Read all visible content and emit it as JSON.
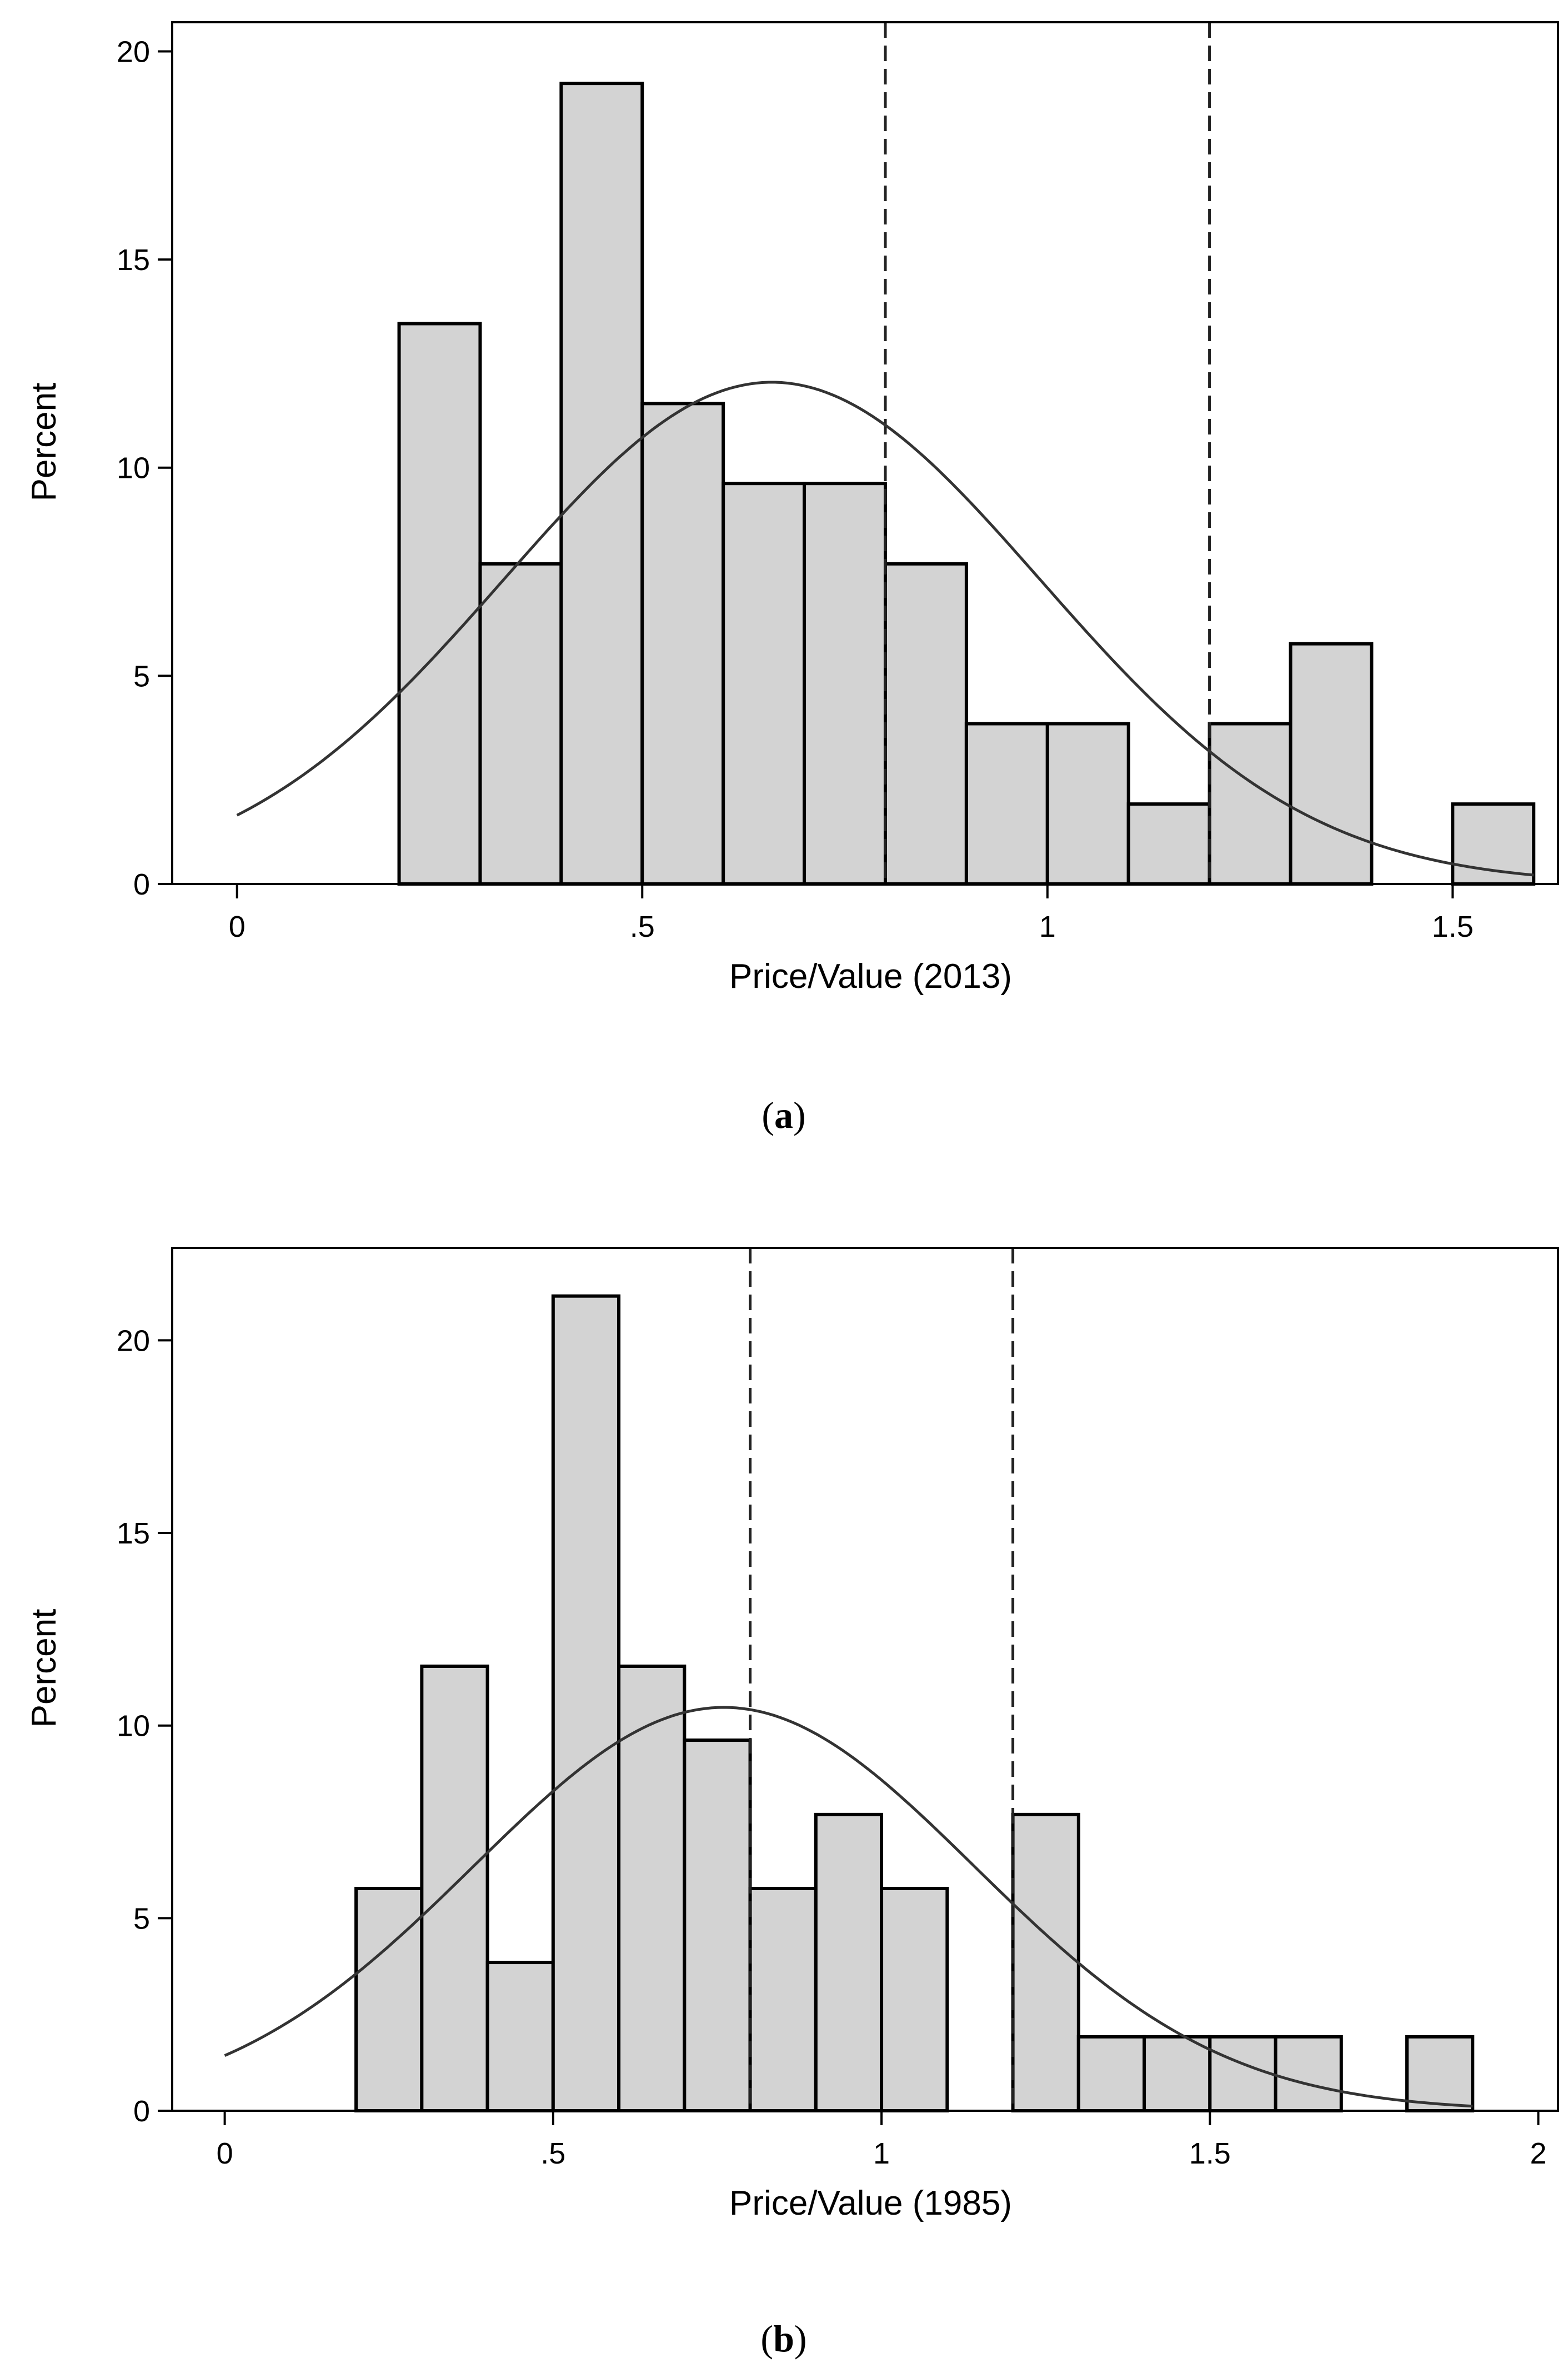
{
  "figure": {
    "panels": [
      {
        "caption_letter": "a",
        "chart_data": {
          "type": "bar",
          "subtype": "histogram",
          "xlabel": "Price/Value (2013)",
          "ylabel": "Percent",
          "xlim": [
            -0.08,
            1.63
          ],
          "ylim": [
            0,
            20.7
          ],
          "xticks": [
            0,
            0.5,
            1,
            1.5
          ],
          "xtick_labels": [
            "0",
            ".5",
            "1",
            "1.5"
          ],
          "yticks": [
            0,
            5,
            10,
            15,
            20
          ],
          "ytick_labels": [
            "0",
            "5",
            "10",
            "15",
            "20"
          ],
          "bin_width": 0.1,
          "bins": [
            {
              "start": 0.2,
              "value": 13.46
            },
            {
              "start": 0.3,
              "value": 7.69
            },
            {
              "start": 0.4,
              "value": 19.23
            },
            {
              "start": 0.5,
              "value": 11.54
            },
            {
              "start": 0.6,
              "value": 9.62
            },
            {
              "start": 0.7,
              "value": 9.62
            },
            {
              "start": 0.8,
              "value": 7.69
            },
            {
              "start": 0.9,
              "value": 3.85
            },
            {
              "start": 1.0,
              "value": 3.85
            },
            {
              "start": 1.1,
              "value": 1.92
            },
            {
              "start": 1.2,
              "value": 3.85
            },
            {
              "start": 1.3,
              "value": 5.77
            },
            {
              "start": 1.5,
              "value": 1.92
            }
          ],
          "reference_lines_x": [
            0.8,
            1.2
          ],
          "normal_curve": {
            "mean": 0.66,
            "sd": 0.331,
            "scale": 10,
            "x_range": [
              0,
              1.6
            ]
          },
          "grid": false,
          "legend": "none"
        }
      },
      {
        "caption_letter": "b",
        "chart_data": {
          "type": "bar",
          "subtype": "histogram",
          "xlabel": "Price/Value (1985)",
          "ylabel": "Percent",
          "xlim": [
            -0.08,
            2.03
          ],
          "ylim": [
            0,
            22.4
          ],
          "xticks": [
            0,
            0.5,
            1,
            1.5,
            2
          ],
          "xtick_labels": [
            "0",
            ".5",
            "1",
            "1.5",
            "2"
          ],
          "yticks": [
            0,
            5,
            10,
            15,
            20
          ],
          "ytick_labels": [
            "0",
            "5",
            "10",
            "15",
            "20"
          ],
          "bin_width": 0.1,
          "bins": [
            {
              "start": 0.2,
              "value": 5.77
            },
            {
              "start": 0.3,
              "value": 11.54
            },
            {
              "start": 0.4,
              "value": 3.85
            },
            {
              "start": 0.5,
              "value": 21.15
            },
            {
              "start": 0.6,
              "value": 11.54
            },
            {
              "start": 0.7,
              "value": 9.62
            },
            {
              "start": 0.8,
              "value": 5.77
            },
            {
              "start": 0.9,
              "value": 7.69
            },
            {
              "start": 1.0,
              "value": 5.77
            },
            {
              "start": 1.2,
              "value": 7.69
            },
            {
              "start": 1.3,
              "value": 1.92
            },
            {
              "start": 1.4,
              "value": 1.92
            },
            {
              "start": 1.5,
              "value": 1.92
            },
            {
              "start": 1.6,
              "value": 1.92
            },
            {
              "start": 1.8,
              "value": 1.92
            }
          ],
          "reference_lines_x": [
            0.8,
            1.2
          ],
          "normal_curve": {
            "mean": 0.76,
            "sd": 0.381,
            "scale": 10,
            "x_range": [
              0,
              1.9
            ]
          },
          "grid": false,
          "legend": "none"
        }
      }
    ]
  }
}
